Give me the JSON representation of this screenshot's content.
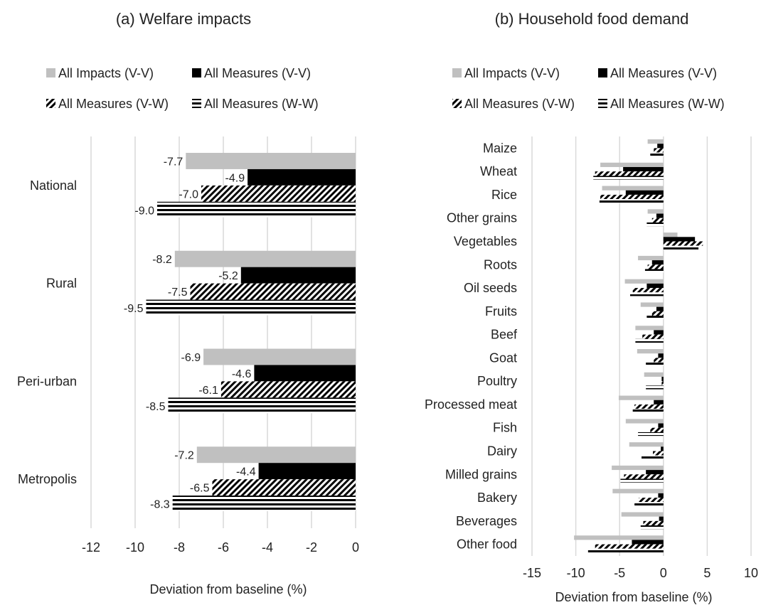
{
  "colors": {
    "impacts": "#c0c0c0",
    "measures_vv": "#000000",
    "grid": "#d9d9d9",
    "text": "#222222"
  },
  "legend_labels": {
    "impacts_vv": "All Impacts (V-V)",
    "measures_vv": "All Measures (V-V)",
    "measures_vw": "All Measures (V-W)",
    "measures_ww": "All Measures (W-W)"
  },
  "chart_data": [
    {
      "type": "bar",
      "orientation": "horizontal",
      "title": "(a)  Welfare impacts",
      "xlabel": "Deviation from baseline (%)",
      "ylabel": "",
      "xlim": [
        -12,
        0
      ],
      "xticks": [
        -12,
        -10,
        -8,
        -6,
        -4,
        -2,
        0
      ],
      "grid": true,
      "legend_position": "top",
      "categories": [
        "National",
        "Rural",
        "Peri-urban",
        "Metropolis"
      ],
      "series": [
        {
          "name": "All Impacts (V-V)",
          "values": [
            -7.7,
            -8.2,
            -6.9,
            -7.2
          ],
          "labels": [
            "-7.7",
            "-8.2",
            "-6.9",
            "-7.2"
          ]
        },
        {
          "name": "All Measures (V-V)",
          "values": [
            -4.9,
            -5.2,
            -4.6,
            -4.4
          ],
          "labels": [
            "-4.9",
            "-5.2",
            "-4.6",
            "-4.4"
          ]
        },
        {
          "name": "All Measures (V-W)",
          "values": [
            -7.0,
            -7.5,
            -6.1,
            -6.5
          ],
          "labels": [
            "-7.0",
            "-7.5",
            "-6.1",
            "-6.5"
          ]
        },
        {
          "name": "All Measures (W-W)",
          "values": [
            -9.0,
            -9.5,
            -8.5,
            -8.3
          ],
          "labels": [
            "-9.0",
            "-9.5",
            "-8.5",
            "-8.3"
          ]
        }
      ]
    },
    {
      "type": "bar",
      "orientation": "horizontal",
      "title": "(b) Household food demand",
      "xlabel": "Deviation from baseline (%)",
      "ylabel": "",
      "xlim": [
        -15,
        10
      ],
      "xticks": [
        -15,
        -10,
        -5,
        0,
        5,
        10
      ],
      "grid": true,
      "legend_position": "top",
      "categories": [
        "Maize",
        "Wheat",
        "Rice",
        "Other grains",
        "Vegetables",
        "Roots",
        "Oil seeds",
        "Fruits",
        "Beef",
        "Goat",
        "Poultry",
        "Processed meat",
        "Fish",
        "Dairy",
        "Milled grains",
        "Bakery",
        "Beverages",
        "Other food"
      ],
      "series": [
        {
          "name": "All Impacts (V-V)",
          "values": [
            -1.8,
            -7.2,
            -7.0,
            -1.8,
            1.6,
            -2.9,
            -4.4,
            -2.6,
            -3.2,
            -3.0,
            -2.2,
            -5.1,
            -4.3,
            -3.9,
            -5.9,
            -5.8,
            -4.8,
            -10.2
          ]
        },
        {
          "name": "All Measures (V-V)",
          "values": [
            -0.7,
            -4.6,
            -4.3,
            -0.8,
            3.6,
            -1.3,
            -1.9,
            -0.8,
            -1.1,
            -0.6,
            -0.2,
            -1.1,
            -0.6,
            -0.3,
            -2.0,
            -0.6,
            -0.5,
            -3.6
          ]
        },
        {
          "name": "All Measures (V-W)",
          "values": [
            -1.1,
            -7.8,
            -7.2,
            -1.3,
            4.5,
            -1.8,
            -3.5,
            -1.3,
            -2.4,
            -1.1,
            -0.2,
            -3.3,
            -1.5,
            -1.2,
            -4.5,
            -2.8,
            -2.3,
            -7.8
          ]
        },
        {
          "name": "All Measures (W-W)",
          "values": [
            -1.5,
            -8.0,
            -7.3,
            -1.9,
            4.0,
            -2.1,
            -3.8,
            -1.9,
            -3.2,
            -2.0,
            -2.0,
            -3.5,
            -2.9,
            -2.5,
            -4.9,
            -3.3,
            -2.6,
            -8.6
          ]
        }
      ]
    }
  ]
}
